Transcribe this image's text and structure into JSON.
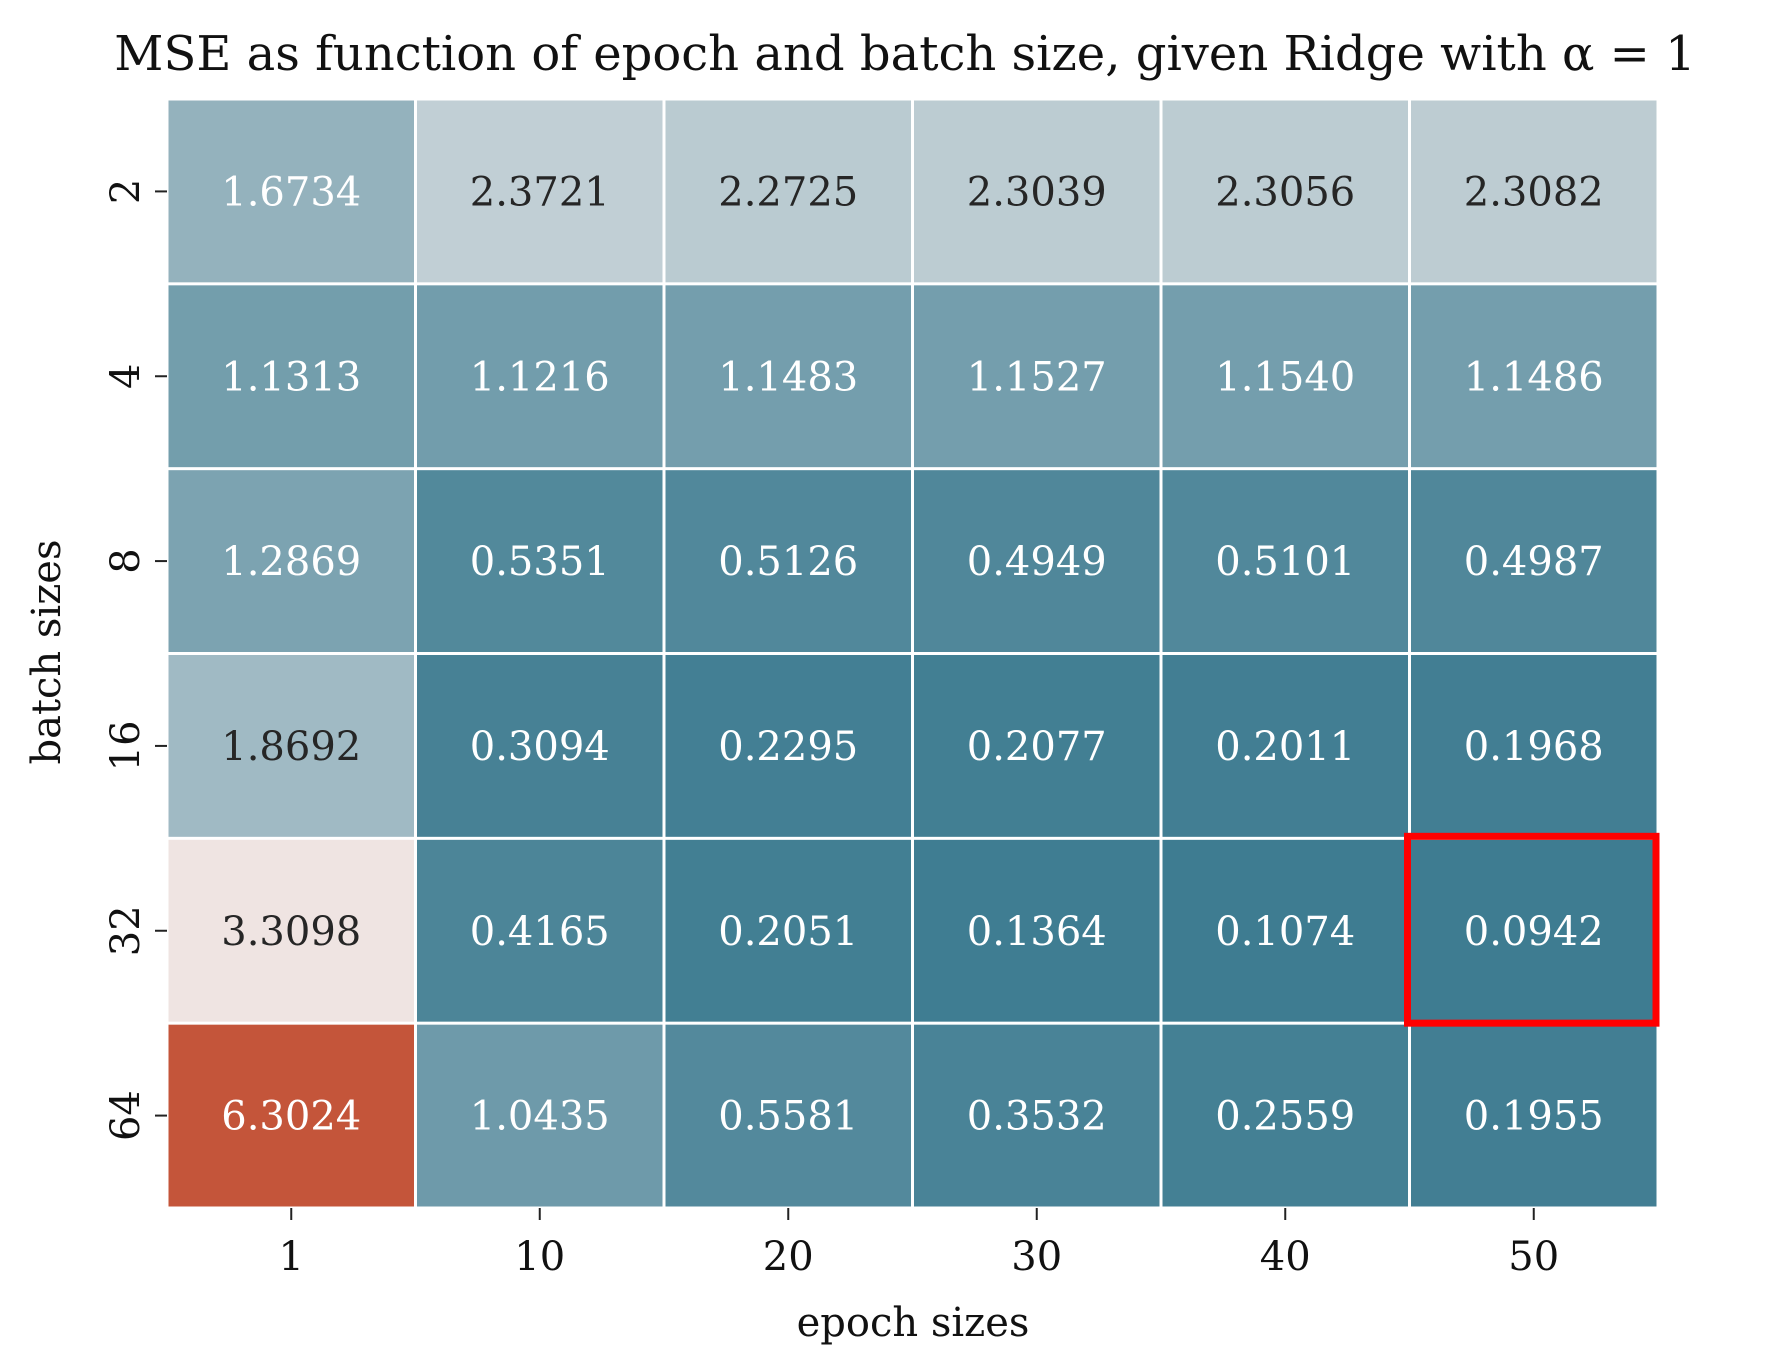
{
  "chart_data": {
    "type": "heatmap",
    "title": "MSE as function of epoch and batch size, given Ridge with α = 1",
    "xlabel": "epoch sizes",
    "ylabel": "batch sizes",
    "x": [
      "1",
      "10",
      "20",
      "30",
      "40",
      "50"
    ],
    "y": [
      "2",
      "4",
      "8",
      "16",
      "32",
      "64"
    ],
    "values": [
      [
        1.6734,
        2.3721,
        2.2725,
        2.3039,
        2.3056,
        2.3082
      ],
      [
        1.1313,
        1.1216,
        1.1483,
        1.1527,
        1.154,
        1.1486
      ],
      [
        1.2869,
        0.5351,
        0.5126,
        0.4949,
        0.5101,
        0.4987
      ],
      [
        1.8692,
        0.3094,
        0.2295,
        0.2077,
        0.2011,
        0.1968
      ],
      [
        3.3098,
        0.4165,
        0.2051,
        0.1364,
        0.1074,
        0.0942
      ],
      [
        6.3024,
        1.0435,
        0.5581,
        0.3532,
        0.2559,
        0.1955
      ]
    ],
    "value_labels": [
      [
        "1.6734",
        "2.3721",
        "2.2725",
        "2.3039",
        "2.3056",
        "2.3082"
      ],
      [
        "1.1313",
        "1.1216",
        "1.1483",
        "1.1527",
        "1.1540",
        "1.1486"
      ],
      [
        "1.2869",
        "0.5351",
        "0.5126",
        "0.4949",
        "0.5101",
        "0.4987"
      ],
      [
        "1.8692",
        "0.3094",
        "0.2295",
        "0.2077",
        "0.2011",
        "0.1968"
      ],
      [
        "3.3098",
        "0.4165",
        "0.2051",
        "0.1364",
        "0.1074",
        "0.0942"
      ],
      [
        "6.3024",
        "1.0435",
        "0.5581",
        "0.3532",
        "0.2559",
        "0.1955"
      ]
    ],
    "colormap": "diverging teal-to-orange",
    "color_low": "#3e7c91",
    "color_mid": "#f2eeee",
    "color_high": "#c4553a",
    "highlight": {
      "row": 4,
      "col": 5,
      "color": "#ff0000"
    },
    "grid": false,
    "colorbar": false
  }
}
